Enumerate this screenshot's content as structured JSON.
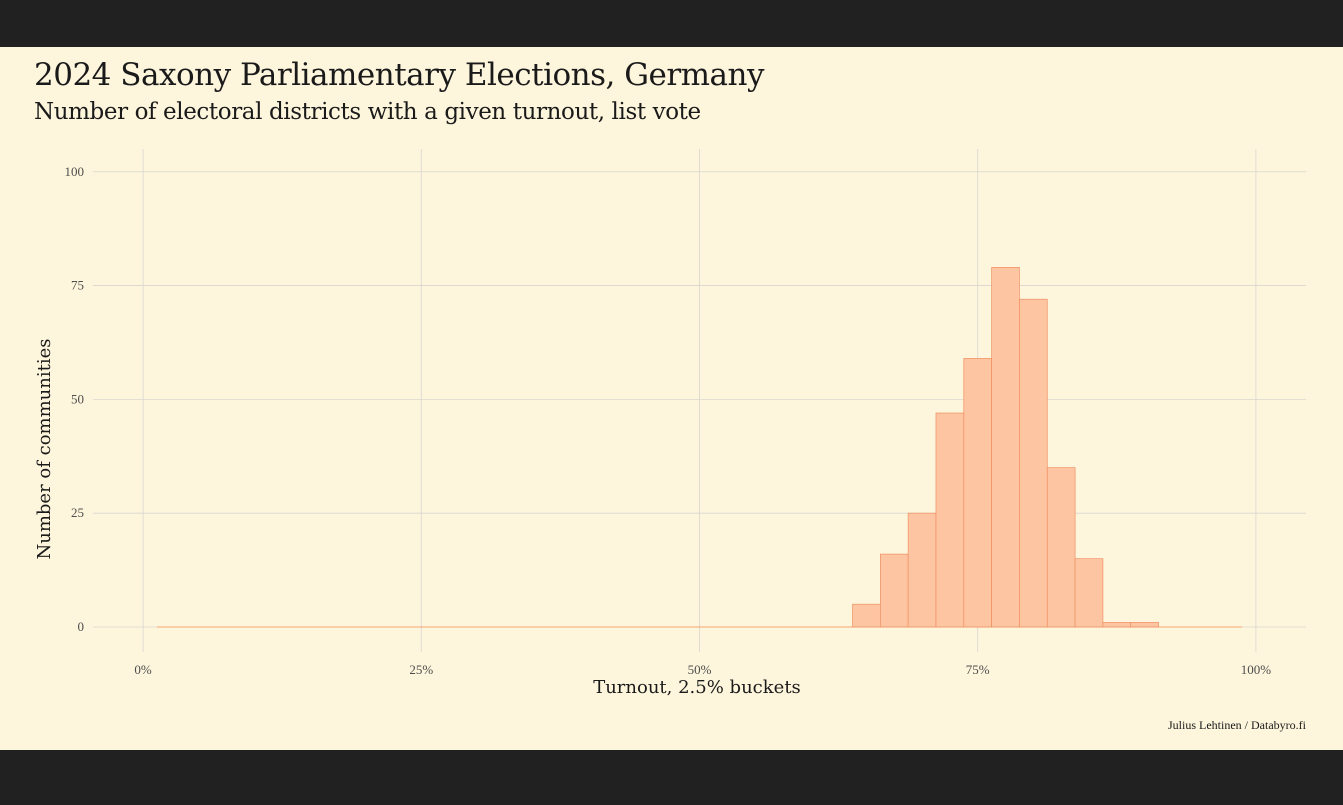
{
  "chart_data": {
    "type": "bar",
    "title": "2024 Saxony Parliamentary Elections, Germany",
    "subtitle": "Number of electoral districts with a given turnout, list vote",
    "xlabel": "Turnout, 2.5% buckets",
    "ylabel": "Number of communities",
    "caption": "Julius Lehtinen / Databyro.fi",
    "xlim": [
      -0.045,
      1.045
    ],
    "ylim": [
      -5.5,
      105
    ],
    "x_ticks": [
      {
        "value": 0,
        "label": "0%"
      },
      {
        "value": 0.25,
        "label": "25%"
      },
      {
        "value": 0.5,
        "label": "50%"
      },
      {
        "value": 0.75,
        "label": "75%"
      },
      {
        "value": 1,
        "label": "100%"
      }
    ],
    "y_ticks": [
      {
        "value": 0,
        "label": "0"
      },
      {
        "value": 25,
        "label": "25"
      },
      {
        "value": 50,
        "label": "50"
      },
      {
        "value": 75,
        "label": "75"
      },
      {
        "value": 100,
        "label": "100"
      }
    ],
    "bin_width": 0.025,
    "baseline_range": [
      0.0125,
      0.9875
    ],
    "bins": [
      {
        "start": 0.6375,
        "end": 0.6625,
        "count": 5
      },
      {
        "start": 0.6625,
        "end": 0.6875,
        "count": 16
      },
      {
        "start": 0.6875,
        "end": 0.7125,
        "count": 25
      },
      {
        "start": 0.7125,
        "end": 0.7375,
        "count": 47
      },
      {
        "start": 0.7375,
        "end": 0.7625,
        "count": 59
      },
      {
        "start": 0.7625,
        "end": 0.7875,
        "count": 79
      },
      {
        "start": 0.7875,
        "end": 0.8125,
        "count": 72
      },
      {
        "start": 0.8125,
        "end": 0.8375,
        "count": 35
      },
      {
        "start": 0.8375,
        "end": 0.8625,
        "count": 15
      },
      {
        "start": 0.8625,
        "end": 0.8875,
        "count": 1
      },
      {
        "start": 0.8875,
        "end": 0.9125,
        "count": 1
      }
    ],
    "colors": {
      "bar_fill": "#fec5a2",
      "bar_stroke": "#ef9062",
      "baseline": "#f4a574",
      "grid": "#d9d6cf"
    }
  }
}
